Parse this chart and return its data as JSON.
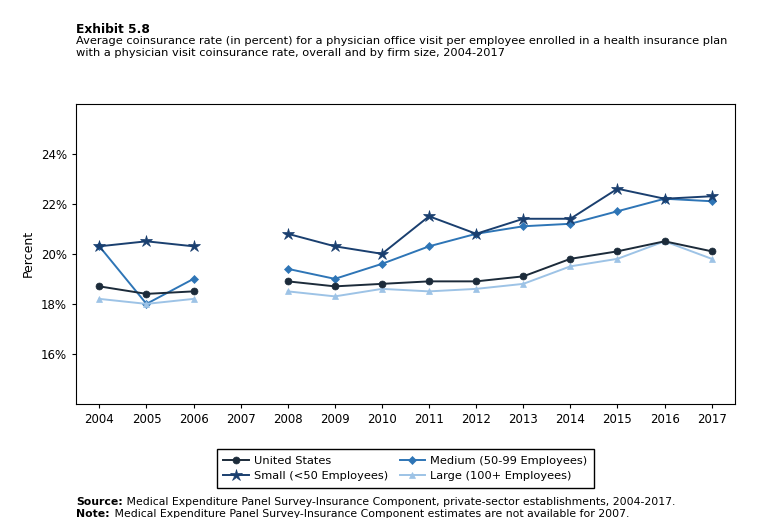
{
  "exhibit": "Exhibit 5.8",
  "title_line1": "Average coinsurance rate (in percent) for a physician office visit per employee enrolled in a health insurance plan",
  "title_line2": "with a physician visit coinsurance rate, overall and by firm size, 2004-2017",
  "years": [
    2004,
    2005,
    2006,
    2007,
    2008,
    2009,
    2010,
    2011,
    2012,
    2013,
    2014,
    2015,
    2016,
    2017
  ],
  "united_states": [
    18.7,
    18.4,
    18.5,
    null,
    18.9,
    18.7,
    18.8,
    18.9,
    18.9,
    19.1,
    19.8,
    20.1,
    20.5,
    20.1
  ],
  "small": [
    20.3,
    20.5,
    20.3,
    null,
    20.8,
    20.3,
    20.0,
    21.5,
    20.8,
    21.4,
    21.4,
    22.6,
    22.2,
    22.3
  ],
  "medium": [
    20.3,
    18.0,
    19.0,
    null,
    19.4,
    19.0,
    19.6,
    20.3,
    20.8,
    21.1,
    21.2,
    21.7,
    22.2,
    22.1
  ],
  "large": [
    18.2,
    18.0,
    18.2,
    null,
    18.5,
    18.3,
    18.6,
    18.5,
    18.6,
    18.8,
    19.5,
    19.8,
    20.5,
    19.8
  ],
  "us_color": "#1c2b3a",
  "small_color": "#1a3f6f",
  "medium_color": "#2e75b6",
  "large_color": "#9dc3e6",
  "ylabel": "Percent",
  "ylim": [
    14,
    26
  ],
  "yticks": [
    16,
    18,
    20,
    22,
    24
  ],
  "ytick_labels": [
    "16%",
    "18%",
    "20%",
    "22%",
    "24%"
  ],
  "source_bold": "Source:",
  "source_rest": " Medical Expenditure Panel Survey-Insurance Component, private-sector establishments, 2004-2017.",
  "note_bold": "Note:",
  "note_rest": " Medical Expenditure Panel Survey-Insurance Component estimates are not available for 2007."
}
